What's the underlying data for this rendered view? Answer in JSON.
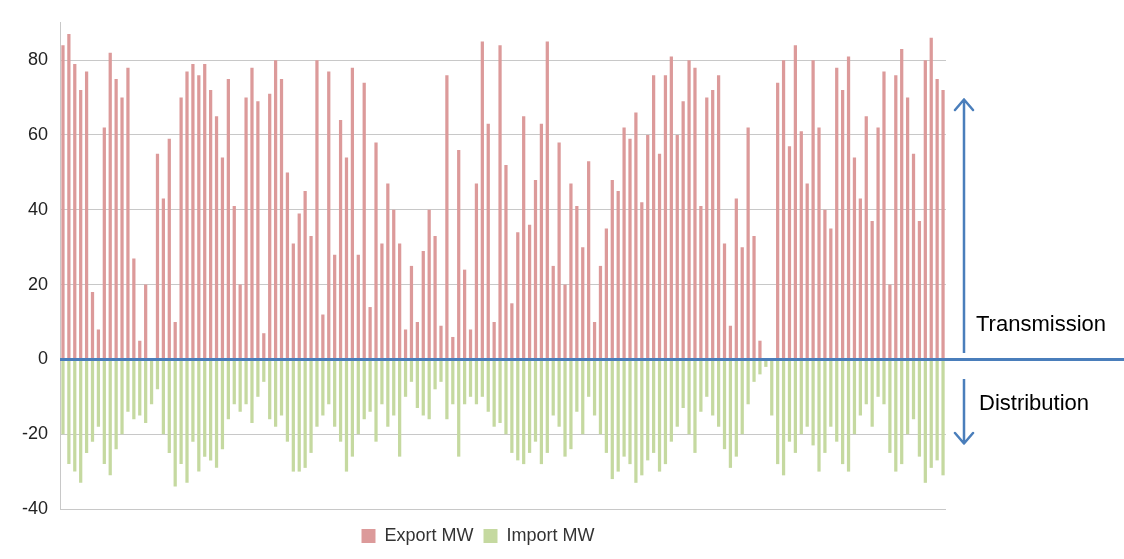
{
  "chart_data": {
    "type": "bar",
    "stacked": true,
    "categories": [
      null,
      null,
      null,
      null,
      null,
      null,
      null,
      null,
      null,
      null,
      null,
      null,
      null,
      null,
      null,
      null,
      null,
      null,
      null,
      null,
      null,
      null,
      null,
      null,
      null,
      null,
      null,
      null,
      null,
      null,
      null,
      null,
      null,
      null,
      null,
      null,
      null,
      null,
      null,
      null,
      null,
      null,
      null,
      null,
      null,
      null,
      null,
      null,
      null,
      null,
      null,
      null,
      null,
      null,
      null,
      null,
      null,
      null,
      null,
      null,
      null,
      null,
      null,
      null,
      null,
      null,
      null,
      null,
      null,
      null,
      null,
      null,
      null,
      null,
      null,
      null,
      null,
      null,
      null,
      null,
      null,
      null,
      null,
      null,
      null,
      null,
      null,
      null,
      null,
      null,
      null,
      null,
      null,
      null,
      null,
      null,
      null,
      null,
      null,
      null,
      null,
      null,
      null,
      null,
      null,
      null,
      null,
      null,
      null,
      null,
      null,
      null,
      null,
      null,
      null,
      null,
      null,
      null,
      null,
      null,
      null,
      null,
      null,
      null,
      null,
      null,
      null,
      null,
      null,
      null,
      null,
      null,
      null,
      null,
      null,
      null,
      null,
      null,
      null,
      null,
      null,
      null,
      null,
      null,
      null,
      null,
      null,
      null,
      null,
      null
    ],
    "series": [
      {
        "name": "Export MW",
        "color": "#dc9a9a",
        "values": [
          84,
          87,
          79,
          72,
          77,
          18,
          8,
          62,
          82,
          75,
          70,
          78,
          27,
          5,
          20,
          0,
          55,
          43,
          59,
          10,
          70,
          77,
          79,
          76,
          79,
          72,
          65,
          54,
          75,
          41,
          20,
          70,
          78,
          69,
          7,
          71,
          80,
          75,
          50,
          31,
          39,
          45,
          33,
          80,
          12,
          77,
          28,
          64,
          54,
          78,
          28,
          74,
          14,
          58,
          31,
          47,
          40,
          31,
          8,
          25,
          10,
          29,
          40,
          33,
          9,
          76,
          6,
          56,
          24,
          8,
          47,
          85,
          63,
          10,
          84,
          52,
          15,
          34,
          65,
          36,
          48,
          63,
          85,
          25,
          58,
          20,
          47,
          41,
          30,
          53,
          10,
          25,
          35,
          48,
          45,
          62,
          59,
          66,
          42,
          60,
          76,
          55,
          76,
          81,
          60,
          69,
          80,
          78,
          41,
          70,
          72,
          76,
          31,
          9,
          43,
          30,
          62,
          33,
          5,
          0,
          0,
          74,
          80,
          57,
          84,
          61,
          47,
          80,
          62,
          40,
          35,
          78,
          72,
          81,
          54,
          43,
          65,
          37,
          62,
          77,
          20,
          76,
          83,
          70,
          55,
          37,
          80,
          86,
          75,
          72
        ]
      },
      {
        "name": "Import MW",
        "color": "#c5d9a0",
        "values": [
          -20,
          -28,
          -30,
          -33,
          -25,
          -22,
          -18,
          -28,
          -31,
          -24,
          -20,
          -14,
          -16,
          -15,
          -17,
          -12,
          -8,
          -20,
          -25,
          -34,
          -28,
          -33,
          -22,
          -30,
          -26,
          -27,
          -29,
          -24,
          -16,
          -12,
          -14,
          -12,
          -17,
          -10,
          -6,
          -16,
          -18,
          -15,
          -22,
          -30,
          -30,
          -29,
          -25,
          -18,
          -15,
          -12,
          -18,
          -22,
          -30,
          -26,
          -20,
          -16,
          -14,
          -22,
          -12,
          -18,
          -15,
          -26,
          -10,
          -6,
          -13,
          -15,
          -16,
          -8,
          -6,
          -16,
          -12,
          -26,
          -12,
          -10,
          -12,
          -10,
          -14,
          -18,
          -17,
          -20,
          -25,
          -27,
          -28,
          -25,
          -22,
          -28,
          -25,
          -15,
          -18,
          -26,
          -24,
          -14,
          -20,
          -10,
          -15,
          -20,
          -25,
          -32,
          -30,
          -26,
          -28,
          -33,
          -31,
          -27,
          -25,
          -30,
          -28,
          -22,
          -18,
          -13,
          -20,
          -25,
          -14,
          -10,
          -15,
          -18,
          -24,
          -29,
          -26,
          -20,
          -12,
          -6,
          -4,
          -2,
          -15,
          -28,
          -31,
          -22,
          -25,
          -20,
          -18,
          -23,
          -30,
          -25,
          -18,
          -22,
          -28,
          -30,
          -20,
          -15,
          -12,
          -18,
          -10,
          -12,
          -25,
          -30,
          -28,
          -20,
          -16,
          -26,
          -33,
          -29,
          -27,
          -31
        ]
      }
    ],
    "ylim": [
      -40,
      90
    ],
    "yticks": [
      -40,
      -20,
      0,
      20,
      40,
      60,
      80
    ],
    "grid": "y",
    "legend": "bottom",
    "tick_labels": "y",
    "ref_lines": [
      {
        "axis": "y",
        "value": 0,
        "color": "#4a7ebb"
      }
    ],
    "annotations": [
      "Transmission",
      "Distribution"
    ]
  }
}
